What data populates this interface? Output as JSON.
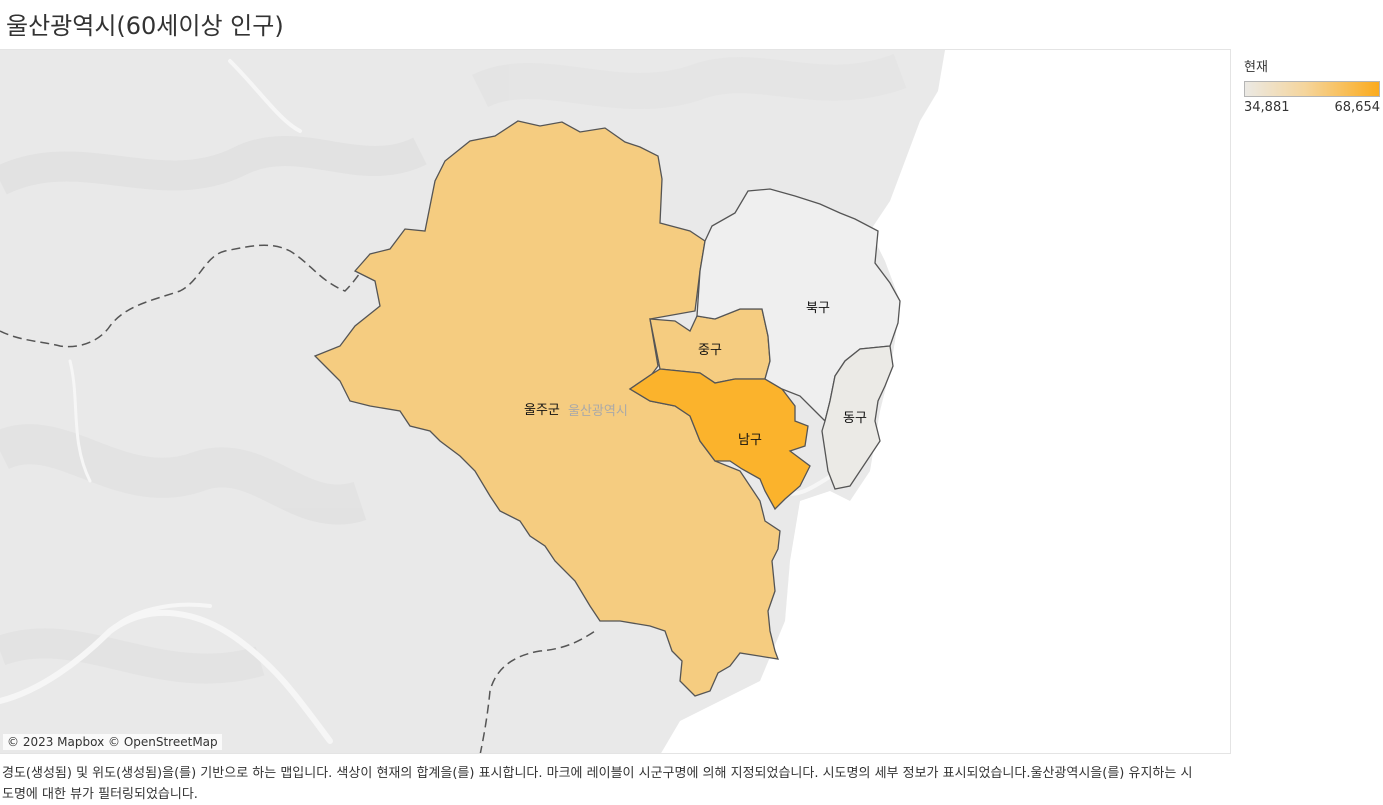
{
  "title": "울산광역시(60세이상 인구)",
  "legend": {
    "title": "현재",
    "min_label": "34,881",
    "max_label": "68,654",
    "color_min": "#ebe9e4",
    "color_max": "#fbab1e"
  },
  "map": {
    "city_label": "울산광역시",
    "attribution": "© 2023 Mapbox © OpenStreetMap",
    "regions": [
      {
        "name": "울주군",
        "color": "#f5cc80"
      },
      {
        "name": "중구",
        "color": "#f5cc80"
      },
      {
        "name": "남구",
        "color": "#fbb32c"
      },
      {
        "name": "북구",
        "color": "#efefef"
      },
      {
        "name": "동구",
        "color": "#ebeae6"
      }
    ]
  },
  "caption": "경도(생성됨) 및 위도(생성됨)을(를) 기반으로 하는 맵입니다. 색상이 현재의 합계을(를) 표시합니다. 마크에 레이블이 시군구명에 의해 지정되었습니다. 시도명의 세부 정보가 표시되었습니다.울산광역시을(를) 유지하는 시도명에 대한 뷰가 필터링되었습니다."
}
